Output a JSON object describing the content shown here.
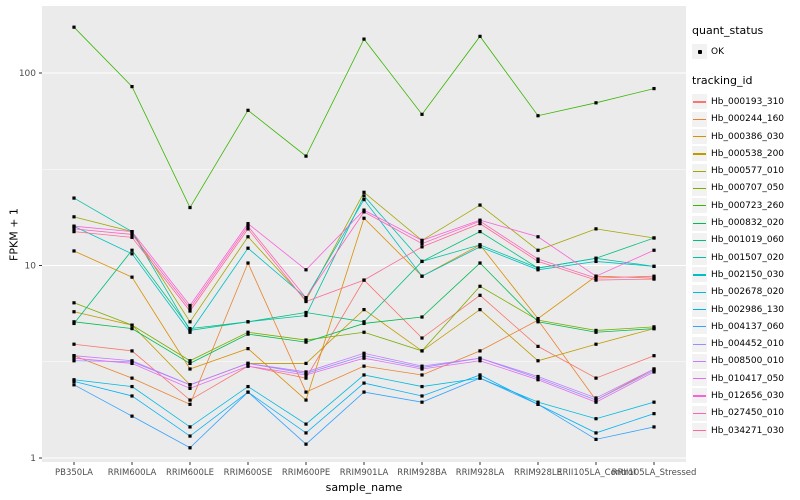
{
  "figure": {
    "xlabel": "sample_name",
    "ylabel": "FPKM + 1"
  },
  "legend": {
    "quant_status_title": "quant_status",
    "quant_status_items": [
      {
        "label": "OK"
      }
    ],
    "tracking_id_title": "tracking_id"
  },
  "theme": {
    "panel_bg": "#EBEBEB",
    "grid_color": "#FFFFFF",
    "tick_text_color": "#4D4D4D",
    "tick_mark_color": "#333333",
    "point_color": "#000000"
  },
  "chart_data": {
    "type": "line",
    "title": "",
    "xlabel": "sample_name",
    "ylabel": "FPKM + 1",
    "y_scale": "log10",
    "y_ticks": [
      1,
      10,
      100
    ],
    "y_minor_ticks": [
      3.162,
      31.62
    ],
    "ylim": [
      1,
      223
    ],
    "grid": "on",
    "legend_position": "right",
    "point_label": "OK",
    "x_categories": [
      "PB350LA",
      "RRIM600LA",
      "RRIM600LE",
      "RRIM600SE",
      "RRIM600PE",
      "RRIM901LA",
      "RRIM928BA",
      "RRIM928LA",
      "RRIM928LE",
      "RRII105LA_Control",
      "RRII105LA_Stressed"
    ],
    "series": [
      {
        "tracking_id": "Hb_000193_310",
        "quant_status": "OK",
        "color": "#F8766D",
        "values": [
          3.9,
          3.6,
          2.0,
          3.0,
          2.6,
          8.4,
          4.2,
          7.0,
          3.8,
          2.6,
          3.4
        ]
      },
      {
        "tracking_id": "Hb_000244_160",
        "quant_status": "OK",
        "color": "#EA8331",
        "values": [
          3.4,
          2.6,
          1.9,
          10.3,
          2.2,
          3.0,
          2.7,
          3.6,
          5.2,
          2.0,
          2.9
        ]
      },
      {
        "tracking_id": "Hb_000386_030",
        "quant_status": "OK",
        "color": "#D89000",
        "values": [
          11.9,
          8.7,
          2.9,
          3.7,
          2.0,
          17.6,
          8.8,
          12.8,
          5.3,
          8.8,
          8.6
        ]
      },
      {
        "tracking_id": "Hb_000538_200",
        "quant_status": "OK",
        "color": "#C09B00",
        "values": [
          5.75,
          4.9,
          2.4,
          3.1,
          3.1,
          5.9,
          3.6,
          5.9,
          3.2,
          3.9,
          4.7
        ]
      },
      {
        "tracking_id": "Hb_000577_010",
        "quant_status": "OK",
        "color": "#A3A500",
        "values": [
          17.9,
          15.0,
          5.1,
          14.1,
          6.6,
          24.0,
          13.5,
          20.6,
          12.0,
          15.5,
          13.9
        ]
      },
      {
        "tracking_id": "Hb_000707_050",
        "quant_status": "OK",
        "color": "#7CAE00",
        "values": [
          6.4,
          4.9,
          3.2,
          4.5,
          4.1,
          4.5,
          3.6,
          7.8,
          5.2,
          4.6,
          4.8
        ]
      },
      {
        "tracking_id": "Hb_000723_260",
        "quant_status": "OK",
        "color": "#39B600",
        "values": [
          173,
          85,
          20,
          64,
          37,
          150,
          61,
          155,
          60,
          70,
          83
        ]
      },
      {
        "tracking_id": "Hb_000832_020",
        "quant_status": "OK",
        "color": "#00BB4E",
        "values": [
          5.1,
          4.7,
          3.1,
          4.4,
          4.0,
          5.0,
          5.4,
          10.3,
          5.1,
          4.5,
          4.7
        ]
      },
      {
        "tracking_id": "Hb_001019_060",
        "quant_status": "OK",
        "color": "#00BF7D",
        "values": [
          5.0,
          12.0,
          4.7,
          5.1,
          5.7,
          5.1,
          10.5,
          15.0,
          9.7,
          10.9,
          13.9
        ]
      },
      {
        "tracking_id": "Hb_001507_020",
        "quant_status": "OK",
        "color": "#00C1A3",
        "values": [
          22.4,
          15.0,
          4.6,
          5.1,
          5.5,
          23.0,
          10.5,
          12.8,
          9.7,
          10.9,
          9.9
        ]
      },
      {
        "tracking_id": "Hb_002150_030",
        "quant_status": "OK",
        "color": "#00BFC4",
        "values": [
          16.0,
          11.5,
          4.5,
          12.3,
          6.8,
          22.0,
          8.8,
          12.5,
          9.5,
          10.5,
          9.9
        ]
      },
      {
        "tracking_id": "Hb_002678_020",
        "quant_status": "OK",
        "color": "#00BAE0",
        "values": [
          2.55,
          2.35,
          1.45,
          2.35,
          1.5,
          2.7,
          2.35,
          2.6,
          1.95,
          1.6,
          1.95
        ]
      },
      {
        "tracking_id": "Hb_002986_130",
        "quant_status": "OK",
        "color": "#00B0F6",
        "values": [
          2.5,
          2.1,
          1.3,
          2.2,
          1.35,
          2.45,
          2.1,
          2.7,
          1.9,
          1.35,
          1.7
        ]
      },
      {
        "tracking_id": "Hb_004137_060",
        "quant_status": "OK",
        "color": "#35A2FF",
        "values": [
          2.4,
          1.65,
          1.13,
          2.2,
          1.18,
          2.2,
          1.95,
          2.6,
          1.9,
          1.25,
          1.45
        ]
      },
      {
        "tracking_id": "Hb_004452_010",
        "quant_status": "OK",
        "color": "#9590FF",
        "values": [
          3.2,
          3.16,
          2.4,
          3.1,
          2.75,
          3.4,
          2.95,
          3.3,
          2.6,
          2.0,
          2.85
        ]
      },
      {
        "tracking_id": "Hb_008500_010",
        "quant_status": "OK",
        "color": "#C77CFF",
        "values": [
          3.4,
          3.2,
          2.4,
          3.1,
          2.8,
          3.5,
          3.0,
          3.3,
          2.65,
          2.05,
          2.9
        ]
      },
      {
        "tracking_id": "Hb_010417_050",
        "quant_status": "OK",
        "color": "#E76BF3",
        "values": [
          3.3,
          3.1,
          2.3,
          3.0,
          2.7,
          3.3,
          2.9,
          3.2,
          2.55,
          1.95,
          2.8
        ]
      },
      {
        "tracking_id": "Hb_012656_030",
        "quant_status": "OK",
        "color": "#FA62DB",
        "values": [
          16.0,
          15.0,
          6.2,
          16.5,
          9.5,
          19.4,
          13.5,
          17.2,
          14.1,
          8.8,
          12.0
        ]
      },
      {
        "tracking_id": "Hb_027450_010",
        "quant_status": "OK",
        "color": "#FF62BC",
        "values": [
          15.5,
          14.5,
          6.0,
          16.0,
          6.8,
          19.0,
          13.0,
          17.0,
          10.8,
          8.6,
          8.8
        ]
      },
      {
        "tracking_id": "Hb_034271_030",
        "quant_status": "OK",
        "color": "#FF6A98",
        "values": [
          15.0,
          14.0,
          5.8,
          15.5,
          6.5,
          8.4,
          12.5,
          16.5,
          10.5,
          8.4,
          8.5
        ]
      }
    ]
  }
}
